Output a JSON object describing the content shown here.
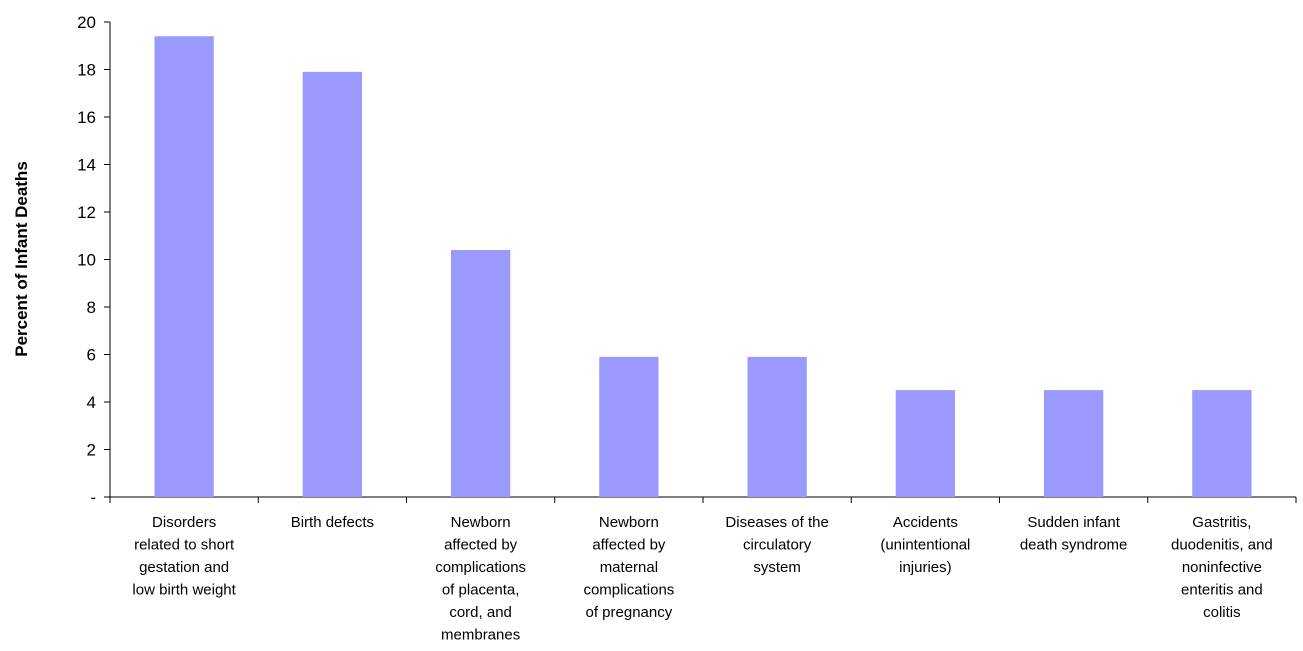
{
  "chart_data": {
    "type": "bar",
    "title": "",
    "xlabel": "",
    "ylabel": "Percent of Infant Deaths",
    "ylim": [
      0,
      20
    ],
    "yticks": [
      {
        "value": 0,
        "label": "-"
      },
      {
        "value": 2,
        "label": "2"
      },
      {
        "value": 4,
        "label": "4"
      },
      {
        "value": 6,
        "label": "6"
      },
      {
        "value": 8,
        "label": "8"
      },
      {
        "value": 10,
        "label": "10"
      },
      {
        "value": 12,
        "label": "12"
      },
      {
        "value": 14,
        "label": "14"
      },
      {
        "value": 16,
        "label": "16"
      },
      {
        "value": 18,
        "label": "18"
      },
      {
        "value": 20,
        "label": "20"
      }
    ],
    "categories": [
      [
        "Disorders",
        "related to short",
        "gestation and",
        "low birth weight"
      ],
      [
        "Birth defects"
      ],
      [
        "Newborn",
        "affected by",
        "complications",
        "of placenta,",
        "cord, and",
        "membranes"
      ],
      [
        "Newborn",
        "affected by",
        "maternal",
        "complications",
        "of pregnancy"
      ],
      [
        "Diseases of the",
        "circulatory",
        "system"
      ],
      [
        "Accidents",
        "(unintentional",
        "injuries)"
      ],
      [
        "Sudden infant",
        "death syndrome"
      ],
      [
        "Gastritis,",
        "duodenitis, and",
        "noninfective",
        "enteritis and",
        "colitis"
      ]
    ],
    "values": [
      19.4,
      17.9,
      10.4,
      5.9,
      5.9,
      4.5,
      4.5,
      4.5
    ],
    "colors": {
      "bar": "#9999ff",
      "axis": "#000000"
    },
    "grid": false,
    "legend": "none"
  }
}
